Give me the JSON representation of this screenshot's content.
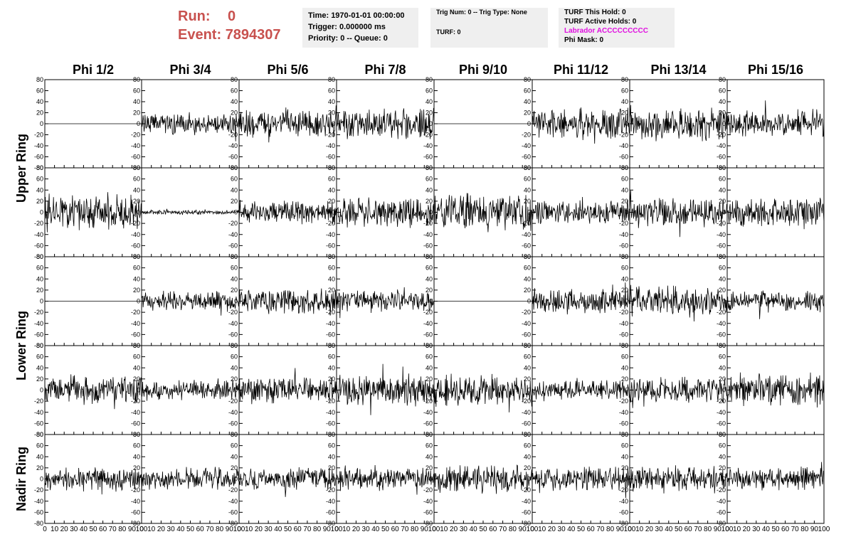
{
  "header": {
    "run_label": "Run:",
    "run_value": "0",
    "event_label": "Event:",
    "event_value": "7894307",
    "time": "Time: 1970-01-01 00:00:00",
    "trigger": "Trigger: 0.000000 ms",
    "priority": "Priority: 0 -- Queue: 0",
    "trig_num": "Trig Num: 0 -- Trig Type: None",
    "turf": "TURF: 0",
    "turf_this_hold": "TURF This Hold: 0",
    "turf_active_holds": "TURF Active Holds: 0",
    "labrador": "Labrador ACCCCCCCCC",
    "phi_mask": "Phi Mask: 0"
  },
  "colors": {
    "run_text": "#c8514e",
    "labrador_text": "#e00ee0",
    "panel_bg": "#efefef"
  },
  "chart_data": {
    "type": "line",
    "layout": "grid of 5 rows x 8 columns of waveform panels",
    "columns": [
      "Phi 1/2",
      "Phi 3/4",
      "Phi 5/6",
      "Phi 7/8",
      "Phi 9/10",
      "Phi 11/12",
      "Phi 13/14",
      "Phi 15/16"
    ],
    "row_groups": [
      {
        "label": "Upper Ring",
        "rows": [
          0,
          1
        ]
      },
      {
        "label": "Lower Ring",
        "rows": [
          2,
          3
        ]
      },
      {
        "label": "Nadir Ring",
        "rows": [
          4
        ]
      }
    ],
    "xlim": [
      0,
      100
    ],
    "ylim": [
      -80,
      80
    ],
    "x_ticks": [
      0,
      10,
      20,
      30,
      40,
      50,
      60,
      70,
      80,
      90,
      100
    ],
    "y_ticks": [
      -80,
      -60,
      -40,
      -20,
      0,
      20,
      40,
      60,
      80
    ],
    "x_tick_labels": [
      "0",
      "10",
      "20",
      "30",
      "40",
      "50",
      "60",
      "70",
      "80",
      "90",
      "100"
    ],
    "y_tick_labels": [
      "-80",
      "-60",
      "-40",
      "-20",
      "0",
      "20",
      "40",
      "60",
      "80"
    ],
    "grid": false,
    "waveform_amplitude": [
      [
        0,
        14,
        17,
        19,
        0,
        20,
        22,
        17
      ],
      [
        22,
        3,
        16,
        19,
        23,
        16,
        18,
        19
      ],
      [
        0,
        12,
        17,
        13,
        0,
        15,
        19,
        13
      ],
      [
        18,
        13,
        17,
        19,
        20,
        13,
        17,
        21
      ],
      [
        16,
        14,
        14,
        14,
        17,
        16,
        17,
        14
      ]
    ]
  }
}
